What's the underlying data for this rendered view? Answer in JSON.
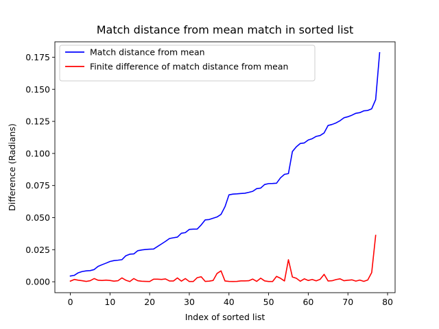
{
  "chart_data": {
    "type": "line",
    "title": "Match distance from mean match in sorted list",
    "xlabel": "Index of sorted list",
    "ylabel": "Difference (Radians)",
    "xlim": [
      -3.9,
      81.9
    ],
    "ylim": [
      -0.0085,
      0.187
    ],
    "xticks": [
      "0",
      "10",
      "20",
      "30",
      "40",
      "50",
      "60",
      "70",
      "80"
    ],
    "yticks": [
      "0.000",
      "0.025",
      "0.050",
      "0.075",
      "0.100",
      "0.125",
      "0.150",
      "0.175"
    ],
    "grid": false,
    "legend_position": "upper-left",
    "series": [
      {
        "name": "Match distance from mean",
        "color": "#0000ff",
        "x": [
          0,
          1,
          2,
          3,
          4,
          5,
          6,
          7,
          8,
          9,
          10,
          11,
          12,
          13,
          14,
          15,
          16,
          17,
          18,
          19,
          20,
          21,
          22,
          23,
          24,
          25,
          26,
          27,
          28,
          29,
          30,
          31,
          32,
          33,
          34,
          35,
          36,
          37,
          38,
          39,
          40,
          41,
          42,
          43,
          44,
          45,
          46,
          47,
          48,
          49,
          50,
          51,
          52,
          53,
          54,
          55,
          56,
          57,
          58,
          59,
          60,
          61,
          62,
          63,
          64,
          65,
          66,
          67,
          68,
          69,
          70,
          71,
          72,
          73,
          74,
          75,
          76,
          77,
          78
        ],
        "values": [
          0.0045,
          0.005,
          0.007,
          0.008,
          0.0085,
          0.0087,
          0.0095,
          0.012,
          0.0133,
          0.0145,
          0.0158,
          0.0165,
          0.0168,
          0.0172,
          0.0203,
          0.0215,
          0.0217,
          0.0242,
          0.0248,
          0.0252,
          0.0254,
          0.0255,
          0.0275,
          0.0295,
          0.0315,
          0.0337,
          0.0343,
          0.0348,
          0.0378,
          0.0383,
          0.0408,
          0.041,
          0.0411,
          0.0443,
          0.0482,
          0.0485,
          0.0495,
          0.0505,
          0.0525,
          0.0585,
          0.0677,
          0.0683,
          0.0685,
          0.0688,
          0.069,
          0.0697,
          0.0705,
          0.0726,
          0.073,
          0.0758,
          0.0765,
          0.0766,
          0.0768,
          0.081,
          0.0837,
          0.0843,
          0.1015,
          0.1052,
          0.1078,
          0.1082,
          0.1105,
          0.1115,
          0.1133,
          0.114,
          0.116,
          0.1218,
          0.1226,
          0.1238,
          0.1255,
          0.1278,
          0.1286,
          0.1298,
          0.1313,
          0.1318,
          0.1332,
          0.1335,
          0.1348,
          0.142,
          0.1785
        ]
      },
      {
        "name": "Finite difference of match distance from mean",
        "color": "#ff0000",
        "x": [
          0,
          1,
          2,
          3,
          4,
          5,
          6,
          7,
          8,
          9,
          10,
          11,
          12,
          13,
          14,
          15,
          16,
          17,
          18,
          19,
          20,
          21,
          22,
          23,
          24,
          25,
          26,
          27,
          28,
          29,
          30,
          31,
          32,
          33,
          34,
          35,
          36,
          37,
          38,
          39,
          40,
          41,
          42,
          43,
          44,
          45,
          46,
          47,
          48,
          49,
          50,
          51,
          52,
          53,
          54,
          55,
          56,
          57,
          58,
          59,
          60,
          61,
          62,
          63,
          64,
          65,
          66,
          67,
          68,
          69,
          70,
          71,
          72,
          73,
          74,
          75,
          76,
          77
        ],
        "values": [
          0.0005,
          0.0018,
          0.0012,
          0.0008,
          0.0003,
          0.0008,
          0.0025,
          0.0012,
          0.001,
          0.0013,
          0.001,
          0.0005,
          0.0008,
          0.003,
          0.0012,
          0.0002,
          0.0025,
          0.0008,
          0.0004,
          0.0003,
          0.0002,
          0.002,
          0.002,
          0.0018,
          0.0022,
          0.0006,
          0.0006,
          0.003,
          0.0005,
          0.0025,
          0.0002,
          0.0002,
          0.0032,
          0.0039,
          0.0003,
          0.0005,
          0.001,
          0.0065,
          0.0085,
          0.0006,
          0.0003,
          0.0002,
          0.0003,
          0.0007,
          0.0007,
          0.0008,
          0.0021,
          0.0003,
          0.0028,
          0.0007,
          0.0002,
          0.0002,
          0.0042,
          0.0027,
          0.0006,
          0.0172,
          0.0037,
          0.0027,
          0.0004,
          0.0023,
          0.001,
          0.0018,
          0.0007,
          0.0019,
          0.0058,
          0.0006,
          0.0008,
          0.0017,
          0.0023,
          0.0008,
          0.0012,
          0.0015,
          0.0005,
          0.0013,
          0.0003,
          0.0014,
          0.0072,
          0.0362
        ]
      }
    ]
  }
}
